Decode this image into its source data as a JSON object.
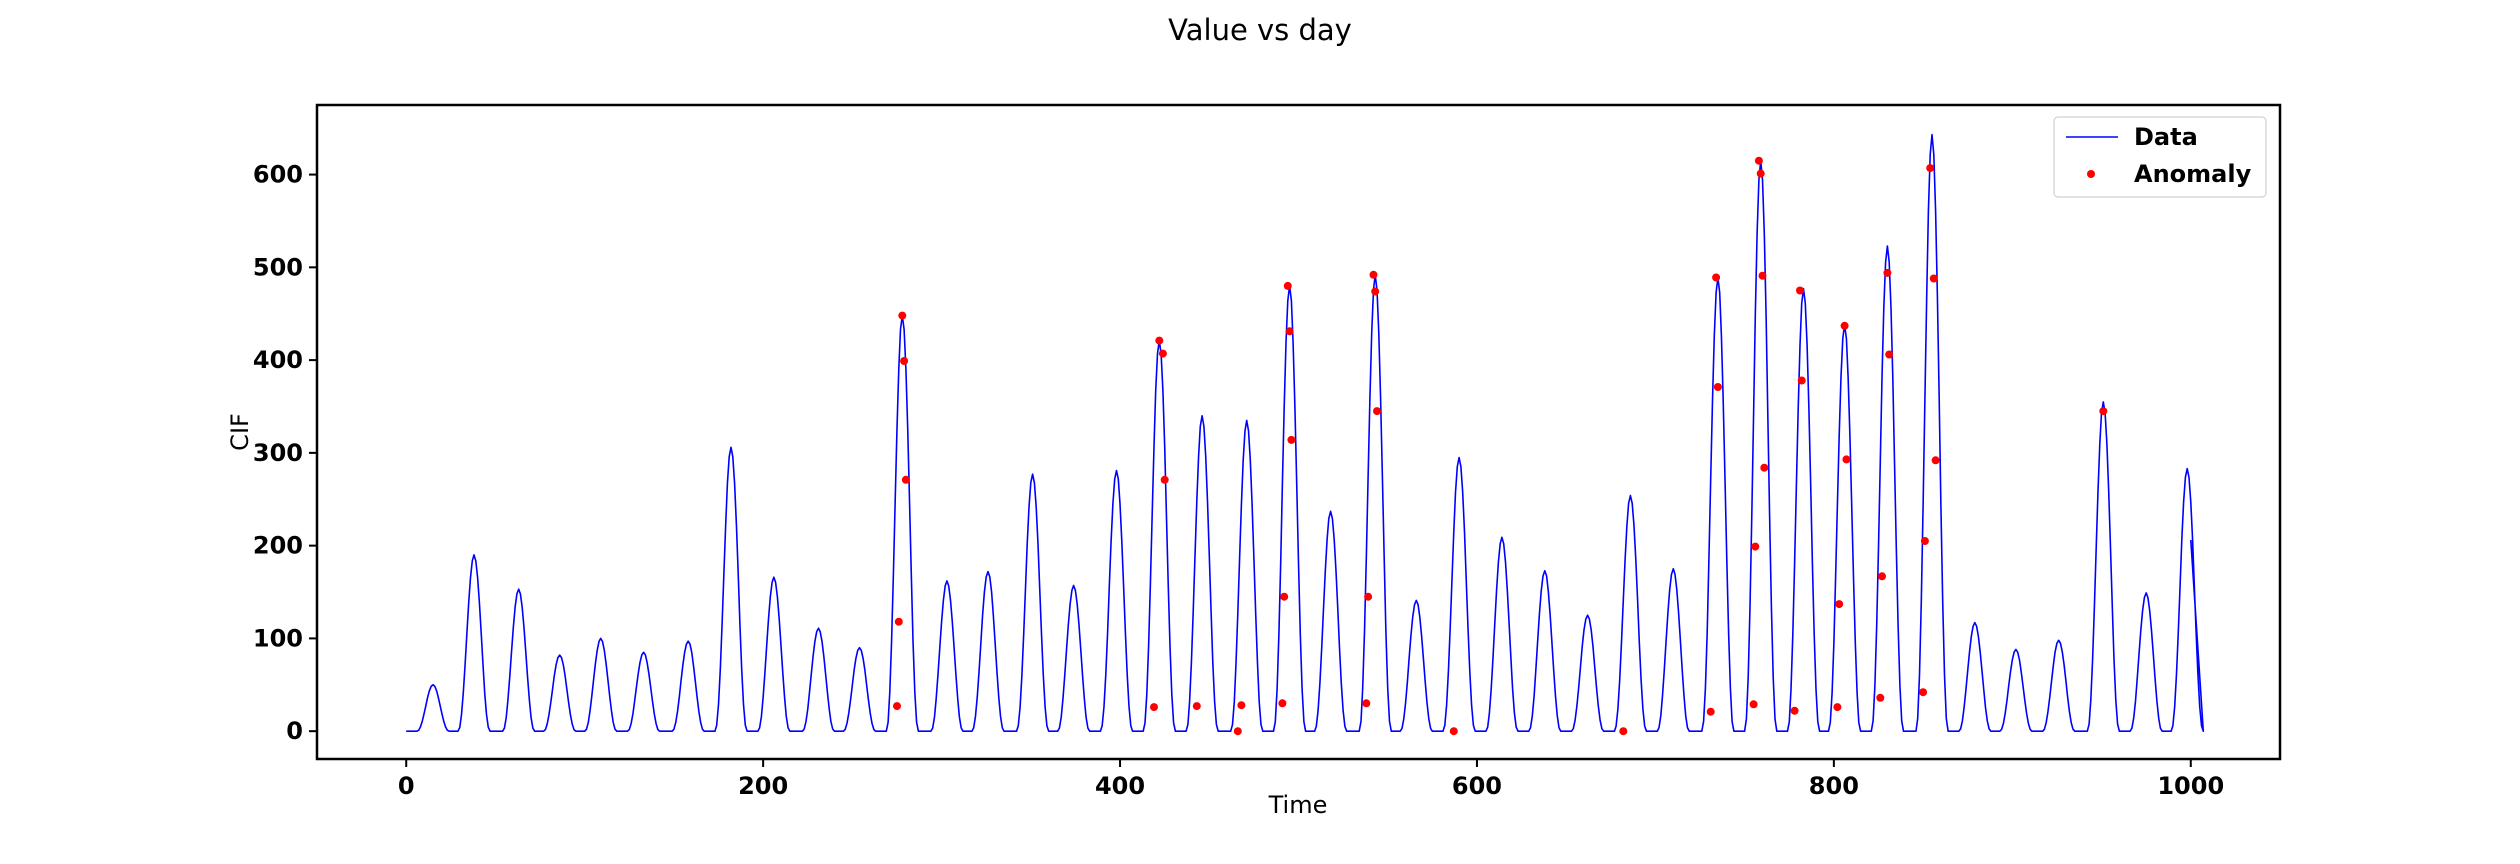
{
  "chart_data": {
    "type": "line",
    "title": "Value vs day",
    "xlabel": "Time",
    "ylabel": "CIF",
    "xlim": [
      -50,
      1050
    ],
    "ylim": [
      -30,
      675
    ],
    "xticks": [
      0,
      200,
      400,
      600,
      800,
      1000
    ],
    "yticks": [
      0,
      100,
      200,
      300,
      400,
      500,
      600
    ],
    "legend_position": "upper right",
    "series": [
      {
        "name": "Data",
        "style": "line",
        "color": "#0000ff",
        "peaks": [
          [
            15,
            50
          ],
          [
            38,
            190
          ],
          [
            63,
            153
          ],
          [
            86,
            82
          ],
          [
            109,
            100
          ],
          [
            133,
            85
          ],
          [
            158,
            97
          ],
          [
            182,
            306
          ],
          [
            206,
            166
          ],
          [
            231,
            111
          ],
          [
            254,
            90
          ],
          [
            278,
            448
          ],
          [
            303,
            162
          ],
          [
            326,
            172
          ],
          [
            351,
            277
          ],
          [
            374,
            157
          ],
          [
            398,
            281
          ],
          [
            422,
            421
          ],
          [
            446,
            340
          ],
          [
            471,
            335
          ],
          [
            495,
            480
          ],
          [
            518,
            237
          ],
          [
            543,
            492
          ],
          [
            566,
            141
          ],
          [
            590,
            295
          ],
          [
            614,
            209
          ],
          [
            638,
            173
          ],
          [
            662,
            125
          ],
          [
            686,
            254
          ],
          [
            710,
            175
          ],
          [
            735,
            489
          ],
          [
            759,
            615
          ],
          [
            783,
            477
          ],
          [
            806,
            438
          ],
          [
            830,
            523
          ],
          [
            855,
            643
          ],
          [
            879,
            117
          ],
          [
            902,
            88
          ],
          [
            926,
            98
          ],
          [
            951,
            355
          ],
          [
            975,
            149
          ],
          [
            998,
            283
          ]
        ],
        "end": [
          1000,
          206
        ]
      },
      {
        "name": "Anomaly",
        "style": "scatter",
        "color": "#ff0000",
        "points": [
          [
            275,
            27
          ],
          [
            276,
            118
          ],
          [
            278,
            448
          ],
          [
            279,
            399
          ],
          [
            280,
            271
          ],
          [
            419,
            26
          ],
          [
            422,
            421
          ],
          [
            424,
            407
          ],
          [
            425,
            271
          ],
          [
            443,
            27
          ],
          [
            466,
            0
          ],
          [
            468,
            28
          ],
          [
            491,
            30
          ],
          [
            492,
            145
          ],
          [
            494,
            480
          ],
          [
            495,
            431
          ],
          [
            496,
            314
          ],
          [
            538,
            30
          ],
          [
            539,
            145
          ],
          [
            542,
            492
          ],
          [
            543,
            474
          ],
          [
            544,
            345
          ],
          [
            587,
            0
          ],
          [
            682,
            0
          ],
          [
            731,
            21
          ],
          [
            734,
            489
          ],
          [
            735,
            371
          ],
          [
            755,
            29
          ],
          [
            756,
            199
          ],
          [
            758,
            615
          ],
          [
            759,
            601
          ],
          [
            760,
            491
          ],
          [
            761,
            284
          ],
          [
            778,
            22
          ],
          [
            781,
            475
          ],
          [
            782,
            378
          ],
          [
            802,
            26
          ],
          [
            803,
            137
          ],
          [
            806,
            437
          ],
          [
            807,
            293
          ],
          [
            826,
            36
          ],
          [
            827,
            167
          ],
          [
            830,
            494
          ],
          [
            831,
            406
          ],
          [
            850,
            42
          ],
          [
            851,
            205
          ],
          [
            854,
            607
          ],
          [
            856,
            488
          ],
          [
            857,
            292
          ],
          [
            951,
            345
          ]
        ]
      }
    ]
  }
}
